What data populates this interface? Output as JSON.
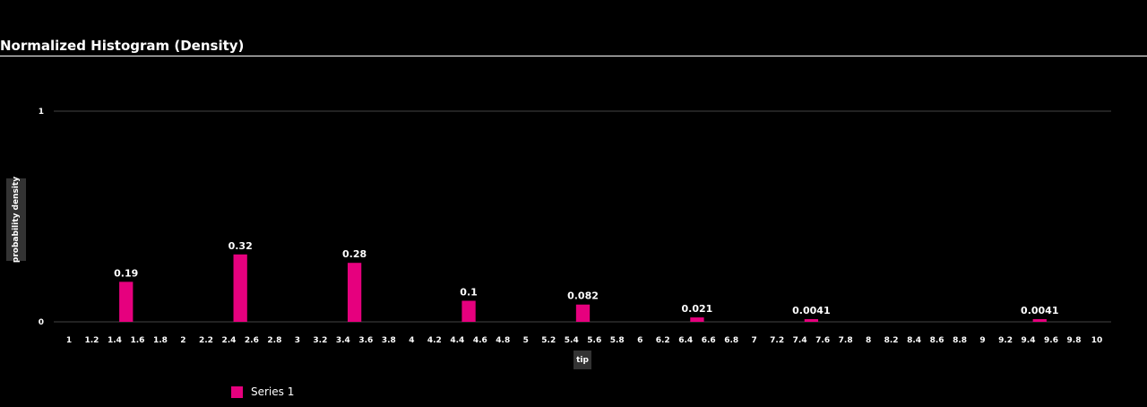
{
  "chart_data": {
    "type": "bar",
    "title": "Normalized Histogram (Density)",
    "xlabel": "tip",
    "ylabel": "probability density",
    "ylim": [
      0,
      1
    ],
    "yticks": [
      "0",
      "1"
    ],
    "xticks": [
      "1",
      "1.2",
      "1.4",
      "1.6",
      "1.8",
      "2",
      "2.2",
      "2.4",
      "2.6",
      "2.8",
      "3",
      "3.2",
      "3.4",
      "3.6",
      "3.8",
      "4",
      "4.2",
      "4.4",
      "4.6",
      "4.8",
      "5",
      "5.2",
      "5.4",
      "5.6",
      "5.8",
      "6",
      "6.2",
      "6.4",
      "6.6",
      "6.8",
      "7",
      "7.2",
      "7.4",
      "7.6",
      "7.8",
      "8",
      "8.2",
      "8.4",
      "8.6",
      "8.8",
      "9",
      "9.2",
      "9.4",
      "9.6",
      "9.8",
      "10"
    ],
    "xlim": [
      1,
      10
    ],
    "bar_width": 0.12,
    "grid": true,
    "legend_position": "bottom-left",
    "series": [
      {
        "name": "Series 1",
        "color": "#e6007e",
        "x": [
          1.5,
          2.5,
          3.5,
          4.5,
          5.5,
          6.5,
          7.5,
          9.5
        ],
        "values": [
          0.19,
          0.32,
          0.28,
          0.1,
          0.082,
          0.021,
          0.0041,
          0.0041
        ],
        "labels": [
          "0.19",
          "0.32",
          "0.28",
          "0.1",
          "0.082",
          "0.021",
          "0.0041",
          "0.0041"
        ]
      }
    ]
  }
}
